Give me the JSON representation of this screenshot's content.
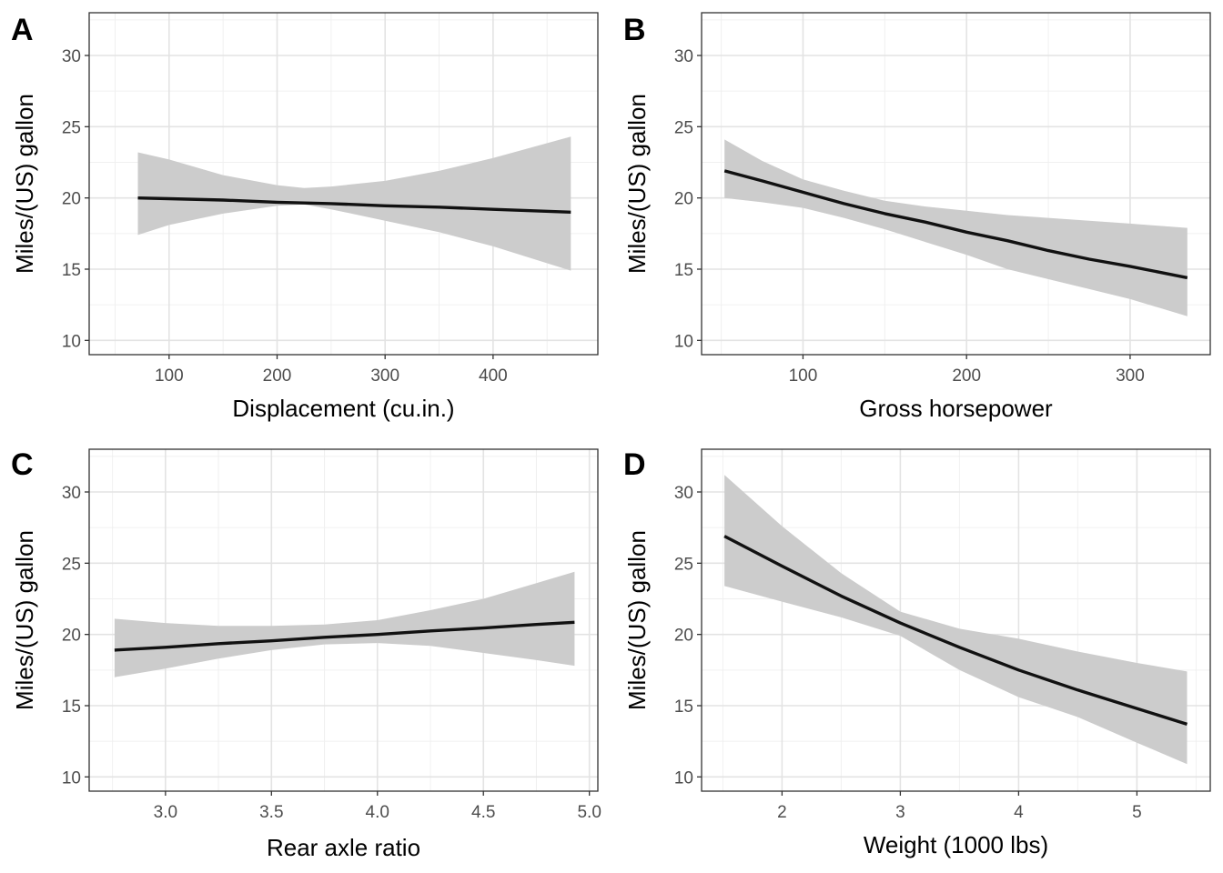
{
  "chart_data": [
    {
      "panel": "A",
      "type": "line",
      "xlabel": "Displacement (cu.in.)",
      "ylabel": "Miles/(US) gallon",
      "xlim": [
        26,
        497
      ],
      "ylim": [
        9,
        33
      ],
      "x_ticks": [
        100,
        200,
        300,
        400
      ],
      "x_tick_labels": [
        "100",
        "200",
        "300",
        "400"
      ],
      "y_ticks": [
        10,
        15,
        20,
        25,
        30
      ],
      "y_tick_labels": [
        "10",
        "15",
        "20",
        "25",
        "30"
      ],
      "series": [
        {
          "x": [
            71.1,
            100,
            150,
            200,
            225,
            250,
            300,
            350,
            400,
            472
          ],
          "y": [
            20.0,
            19.95,
            19.85,
            19.7,
            19.65,
            19.6,
            19.45,
            19.35,
            19.2,
            19.0
          ],
          "ci_low": [
            17.4,
            18.1,
            18.9,
            19.45,
            19.55,
            19.2,
            18.4,
            17.6,
            16.6,
            14.9
          ],
          "ci_high": [
            23.2,
            22.7,
            21.6,
            20.9,
            20.7,
            20.8,
            21.2,
            21.9,
            22.8,
            24.3
          ]
        }
      ],
      "grid": true,
      "ribbon_color": "#cccccc",
      "line_color": "#111111"
    },
    {
      "panel": "B",
      "type": "line",
      "xlabel": "Gross horsepower",
      "ylabel": "Miles/(US) gallon",
      "xlim": [
        38,
        349
      ],
      "ylim": [
        9,
        33
      ],
      "x_ticks": [
        100,
        200,
        300
      ],
      "x_tick_labels": [
        "100",
        "200",
        "300"
      ],
      "y_ticks": [
        10,
        15,
        20,
        25,
        30
      ],
      "y_tick_labels": [
        "10",
        "15",
        "20",
        "25",
        "30"
      ],
      "series": [
        {
          "x": [
            52,
            75,
            100,
            125,
            150,
            175,
            200,
            225,
            250,
            275,
            300,
            335
          ],
          "y": [
            21.9,
            21.2,
            20.4,
            19.6,
            18.9,
            18.3,
            17.6,
            17.0,
            16.3,
            15.7,
            15.2,
            14.4
          ],
          "ci_low": [
            20.0,
            19.7,
            19.3,
            18.6,
            17.8,
            16.9,
            16.0,
            15.0,
            14.3,
            13.6,
            12.9,
            11.7
          ],
          "ci_high": [
            24.1,
            22.6,
            21.3,
            20.5,
            19.8,
            19.4,
            19.1,
            18.8,
            18.6,
            18.4,
            18.2,
            17.9
          ]
        }
      ],
      "grid": true,
      "ribbon_color": "#cccccc",
      "line_color": "#111111"
    },
    {
      "panel": "C",
      "type": "line",
      "xlabel": "Rear axle ratio",
      "ylabel": "Miles/(US) gallon",
      "xlim": [
        2.64,
        5.04
      ],
      "ylim": [
        9,
        33
      ],
      "x_ticks": [
        3.0,
        3.5,
        4.0,
        4.5,
        5.0
      ],
      "x_tick_labels": [
        "3.0",
        "3.5",
        "4.0",
        "4.5",
        "5.0"
      ],
      "y_ticks": [
        10,
        15,
        20,
        25,
        30
      ],
      "y_tick_labels": [
        "10",
        "15",
        "20",
        "25",
        "30"
      ],
      "series": [
        {
          "x": [
            2.76,
            3.0,
            3.25,
            3.5,
            3.75,
            4.0,
            4.25,
            4.5,
            4.75,
            4.93
          ],
          "y": [
            18.9,
            19.1,
            19.35,
            19.55,
            19.8,
            20.0,
            20.25,
            20.45,
            20.7,
            20.85
          ],
          "ci_low": [
            17.0,
            17.6,
            18.3,
            18.9,
            19.3,
            19.4,
            19.2,
            18.7,
            18.2,
            17.8
          ],
          "ci_high": [
            21.1,
            20.8,
            20.6,
            20.6,
            20.7,
            21.0,
            21.7,
            22.5,
            23.6,
            24.4
          ]
        }
      ],
      "grid": true,
      "ribbon_color": "#cccccc",
      "line_color": "#111111"
    },
    {
      "panel": "D",
      "type": "line",
      "xlabel": "Weight (1000 lbs)",
      "ylabel": "Miles/(US) gallon",
      "xlim": [
        1.32,
        5.62
      ],
      "ylim": [
        9,
        33
      ],
      "x_ticks": [
        2,
        3,
        4,
        5
      ],
      "x_tick_labels": [
        "2",
        "3",
        "4",
        "5"
      ],
      "y_ticks": [
        10,
        15,
        20,
        25,
        30
      ],
      "y_tick_labels": [
        "10",
        "15",
        "20",
        "25",
        "30"
      ],
      "series": [
        {
          "x": [
            1.513,
            2.0,
            2.5,
            3.0,
            3.5,
            4.0,
            4.5,
            5.0,
            5.424
          ],
          "y": [
            26.9,
            24.8,
            22.7,
            20.8,
            19.1,
            17.5,
            16.1,
            14.8,
            13.7
          ],
          "ci_low": [
            23.4,
            22.3,
            21.2,
            19.9,
            17.5,
            15.6,
            14.2,
            12.4,
            10.9
          ],
          "ci_high": [
            31.2,
            27.6,
            24.3,
            21.6,
            20.4,
            19.7,
            18.8,
            18.0,
            17.4
          ]
        }
      ],
      "grid": true,
      "ribbon_color": "#cccccc",
      "line_color": "#111111"
    }
  ]
}
